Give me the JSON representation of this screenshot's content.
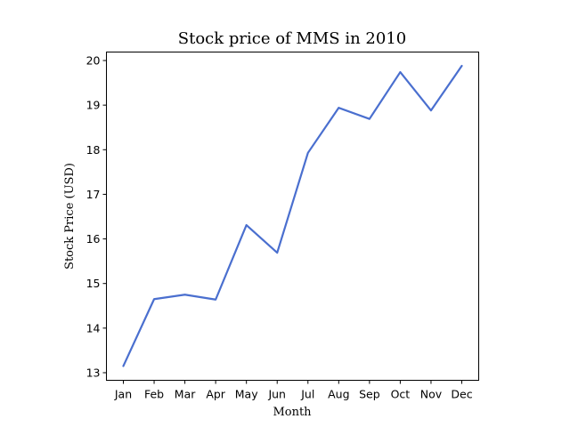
{
  "chart_data": {
    "type": "line",
    "title": "Stock price of MMS in 2010",
    "xlabel": "Month",
    "ylabel": "Stock Price (USD)",
    "categories": [
      "Jan",
      "Feb",
      "Mar",
      "Apr",
      "May",
      "Jun",
      "Jul",
      "Aug",
      "Sep",
      "Oct",
      "Nov",
      "Dec"
    ],
    "series": [
      {
        "values": [
          13.15,
          14.65,
          14.75,
          14.64,
          16.31,
          15.69,
          17.93,
          18.94,
          18.69,
          19.74,
          18.88,
          19.88
        ],
        "color": "#4a6fcf"
      }
    ],
    "ylim": [
      12.83,
      20.19
    ],
    "yticks": [
      13,
      14,
      15,
      16,
      17,
      18,
      19,
      20
    ],
    "grid": false,
    "legend": "none"
  }
}
